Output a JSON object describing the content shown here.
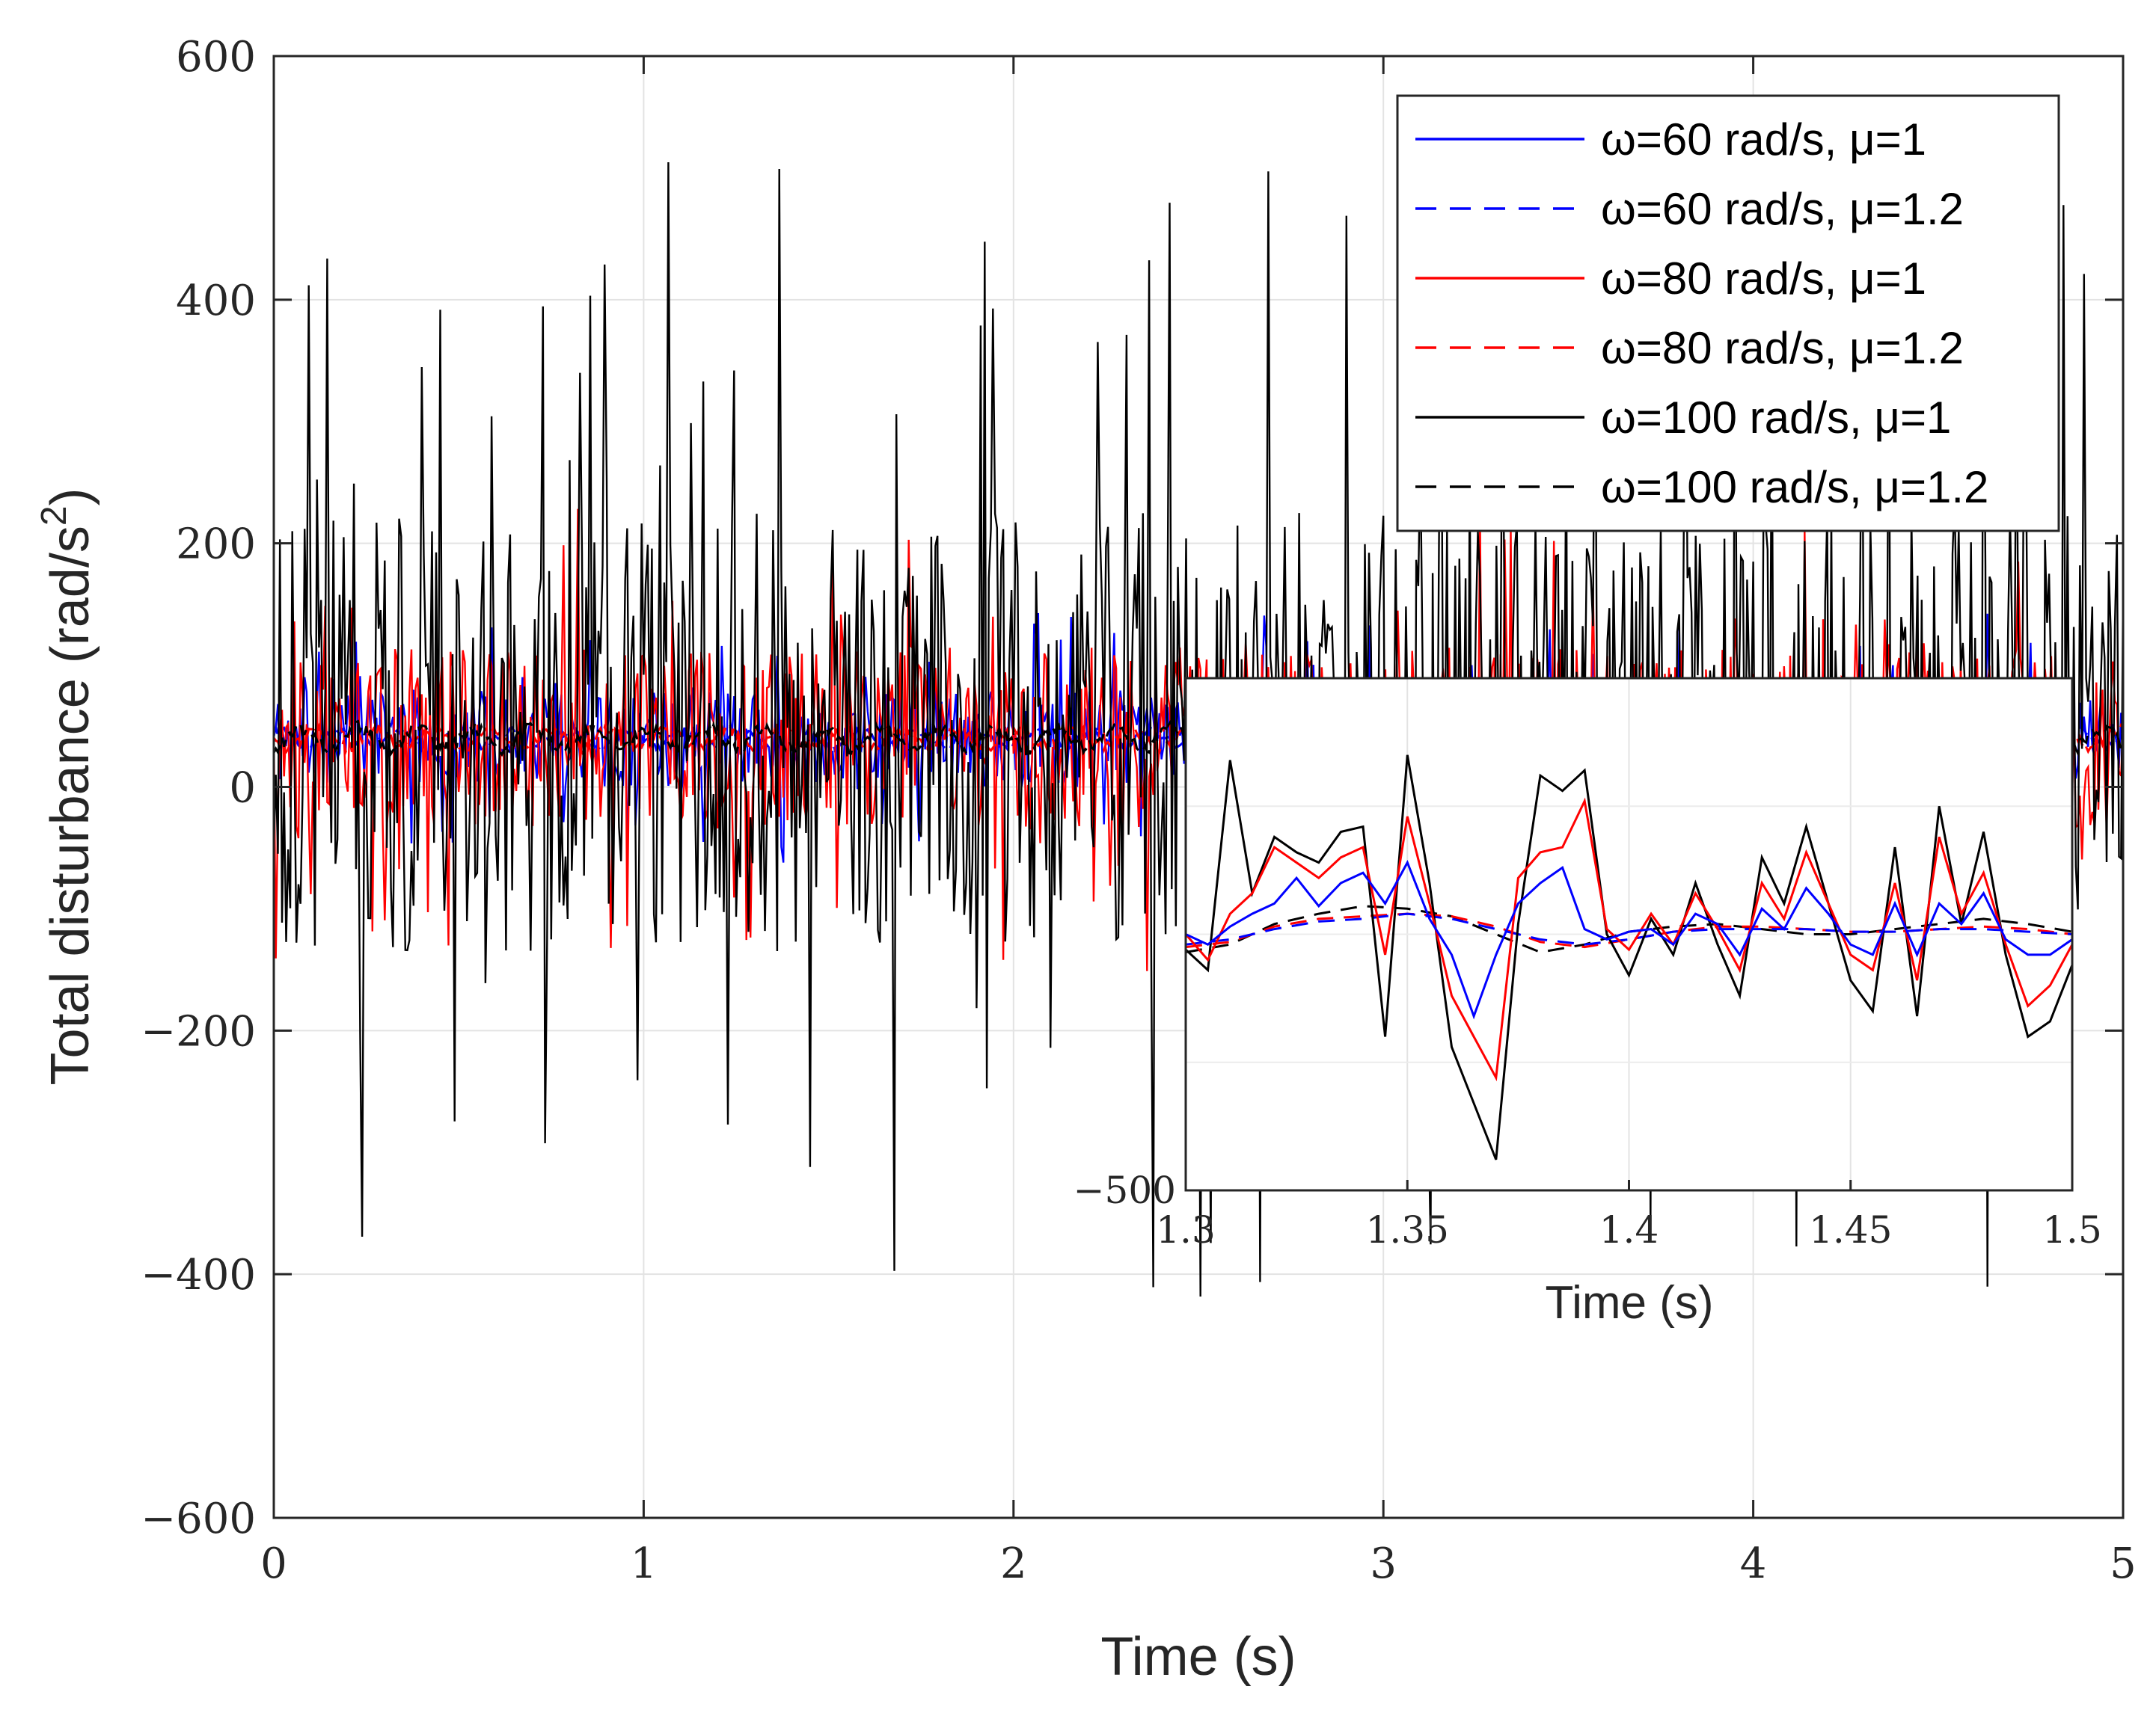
{
  "chart_data": [
    {
      "id": "main",
      "type": "line",
      "title": "",
      "xlabel": "Time (s)",
      "ylabel_main": "Total disturbance (rad/s",
      "ylabel_sup": "2",
      "ylabel_close": ")",
      "xlim": [
        0,
        5
      ],
      "ylim": [
        -600,
        600
      ],
      "xticks": [
        0,
        1,
        2,
        3,
        4,
        5
      ],
      "xtick_labels": [
        "0",
        "1",
        "2",
        "3",
        "4",
        "5"
      ],
      "yticks": [
        -600,
        -400,
        -200,
        0,
        200,
        400,
        600
      ],
      "ytick_labels": [
        "−600",
        "−400",
        "−200",
        "0",
        "200",
        "400",
        "600"
      ],
      "grid": true,
      "legend_position": "top-right",
      "series": [
        {
          "name": "ω=60 rad/s, μ=1",
          "color": "#0000ff",
          "dash": "solid",
          "amplitude": 40,
          "mean": 40,
          "seed": 11
        },
        {
          "name": "ω=60 rad/s, μ=1.2",
          "color": "#0000ff",
          "dash": "dashed",
          "amplitude": 10,
          "mean": 40,
          "seed": 12
        },
        {
          "name": "ω=80 rad/s, μ=1",
          "color": "#ff0000",
          "dash": "solid",
          "amplitude": 75,
          "mean": 40,
          "seed": 13
        },
        {
          "name": "ω=80 rad/s, μ=1.2",
          "color": "#ff0000",
          "dash": "dashed",
          "amplitude": 12,
          "mean": 40,
          "seed": 14
        },
        {
          "name": "ω=100 rad/s, μ=1",
          "color": "#000000",
          "dash": "solid",
          "amplitude": 180,
          "mean": 45,
          "seed": 15
        },
        {
          "name": "ω=100 rad/s, μ=1.2",
          "color": "#000000",
          "dash": "dashed",
          "amplitude": 14,
          "mean": 40,
          "seed": 16
        }
      ]
    },
    {
      "id": "inset",
      "type": "line",
      "xlabel": "Time (s)",
      "xlim": [
        1.3,
        1.5
      ],
      "ylim": [
        -500,
        500
      ],
      "xticks": [
        1.3,
        1.35,
        1.4,
        1.45,
        1.5
      ],
      "xtick_labels": [
        "1.3",
        "1.35",
        "1.4",
        "1.45",
        "1.5"
      ],
      "ytick_labels": [
        "−500"
      ],
      "grid": true,
      "series": [
        {
          "name": "ω=60 rad/s, μ=1",
          "color": "#0000ff",
          "dash": "solid",
          "x": [
            1.3,
            1.305,
            1.31,
            1.315,
            1.32,
            1.325,
            1.33,
            1.335,
            1.34,
            1.345,
            1.35,
            1.355,
            1.36,
            1.365,
            1.37,
            1.375,
            1.38,
            1.385,
            1.39,
            1.395,
            1.4,
            1.405,
            1.41,
            1.415,
            1.42,
            1.425,
            1.43,
            1.435,
            1.44,
            1.445,
            1.45,
            1.455,
            1.46,
            1.465,
            1.47,
            1.475,
            1.48,
            1.485,
            1.49,
            1.495,
            1.5
          ],
          "y": [
            0,
            -20,
            15,
            40,
            60,
            110,
            55,
            100,
            120,
            60,
            140,
            30,
            -40,
            -160,
            -40,
            60,
            100,
            130,
            10,
            -10,
            5,
            10,
            -20,
            40,
            20,
            -40,
            50,
            10,
            90,
            40,
            -20,
            -40,
            60,
            -40,
            60,
            20,
            80,
            -10,
            -40,
            -40,
            -10
          ]
        },
        {
          "name": "ω=60 rad/s, μ=1.2",
          "color": "#0000ff",
          "dash": "dashed",
          "x": [
            1.3,
            1.31,
            1.32,
            1.33,
            1.34,
            1.35,
            1.36,
            1.37,
            1.38,
            1.39,
            1.4,
            1.41,
            1.42,
            1.43,
            1.44,
            1.45,
            1.46,
            1.47,
            1.48,
            1.49,
            1.5
          ],
          "y": [
            -20,
            -10,
            10,
            25,
            30,
            40,
            30,
            10,
            -10,
            -20,
            -10,
            5,
            10,
            10,
            10,
            5,
            5,
            10,
            10,
            5,
            0
          ]
        },
        {
          "name": "ω=80 rad/s, μ=1",
          "color": "#ff0000",
          "dash": "solid",
          "x": [
            1.3,
            1.305,
            1.31,
            1.315,
            1.32,
            1.325,
            1.33,
            1.335,
            1.34,
            1.345,
            1.35,
            1.355,
            1.36,
            1.365,
            1.37,
            1.375,
            1.38,
            1.385,
            1.39,
            1.395,
            1.4,
            1.405,
            1.41,
            1.415,
            1.42,
            1.425,
            1.43,
            1.435,
            1.44,
            1.445,
            1.45,
            1.455,
            1.46,
            1.465,
            1.47,
            1.475,
            1.48,
            1.485,
            1.49,
            1.495,
            1.5
          ],
          "y": [
            0,
            -50,
            40,
            80,
            170,
            140,
            110,
            150,
            170,
            -40,
            230,
            60,
            -120,
            -200,
            -280,
            110,
            160,
            170,
            260,
            10,
            -30,
            40,
            -20,
            80,
            10,
            -70,
            100,
            30,
            160,
            60,
            -40,
            -70,
            100,
            -90,
            190,
            40,
            120,
            -20,
            -140,
            -100,
            -20
          ]
        },
        {
          "name": "ω=80 rad/s, μ=1.2",
          "color": "#ff0000",
          "dash": "dashed",
          "x": [
            1.3,
            1.31,
            1.32,
            1.33,
            1.34,
            1.35,
            1.36,
            1.37,
            1.38,
            1.39,
            1.4,
            1.41,
            1.42,
            1.43,
            1.44,
            1.45,
            1.46,
            1.47,
            1.48,
            1.49,
            1.5
          ],
          "y": [
            -25,
            -15,
            15,
            30,
            35,
            40,
            35,
            15,
            -15,
            -25,
            -10,
            5,
            15,
            15,
            10,
            5,
            5,
            10,
            15,
            10,
            0
          ]
        },
        {
          "name": "ω=100 rad/s, μ=1",
          "color": "#000000",
          "dash": "solid",
          "x": [
            1.3,
            1.305,
            1.31,
            1.315,
            1.32,
            1.325,
            1.33,
            1.335,
            1.34,
            1.345,
            1.35,
            1.355,
            1.36,
            1.365,
            1.37,
            1.375,
            1.38,
            1.385,
            1.39,
            1.395,
            1.4,
            1.405,
            1.41,
            1.415,
            1.42,
            1.425,
            1.43,
            1.435,
            1.44,
            1.445,
            1.45,
            1.455,
            1.46,
            1.465,
            1.47,
            1.475,
            1.48,
            1.485,
            1.49,
            1.495,
            1.5
          ],
          "y": [
            -30,
            -70,
            340,
            80,
            190,
            160,
            140,
            200,
            210,
            -200,
            350,
            100,
            -220,
            -330,
            -440,
            20,
            310,
            280,
            320,
            0,
            -80,
            30,
            -40,
            100,
            -20,
            -120,
            150,
            60,
            210,
            60,
            -90,
            -150,
            170,
            -160,
            250,
            20,
            200,
            -40,
            -200,
            -170,
            -60
          ]
        },
        {
          "name": "ω=100 rad/s, μ=1.2",
          "color": "#000000",
          "dash": "dashed",
          "x": [
            1.3,
            1.31,
            1.32,
            1.33,
            1.34,
            1.35,
            1.36,
            1.37,
            1.38,
            1.39,
            1.4,
            1.41,
            1.42,
            1.43,
            1.44,
            1.45,
            1.46,
            1.47,
            1.48,
            1.49,
            1.5
          ],
          "y": [
            -35,
            -20,
            20,
            40,
            55,
            50,
            35,
            0,
            -35,
            -20,
            5,
            15,
            20,
            10,
            0,
            0,
            10,
            20,
            30,
            20,
            5
          ]
        }
      ]
    }
  ]
}
